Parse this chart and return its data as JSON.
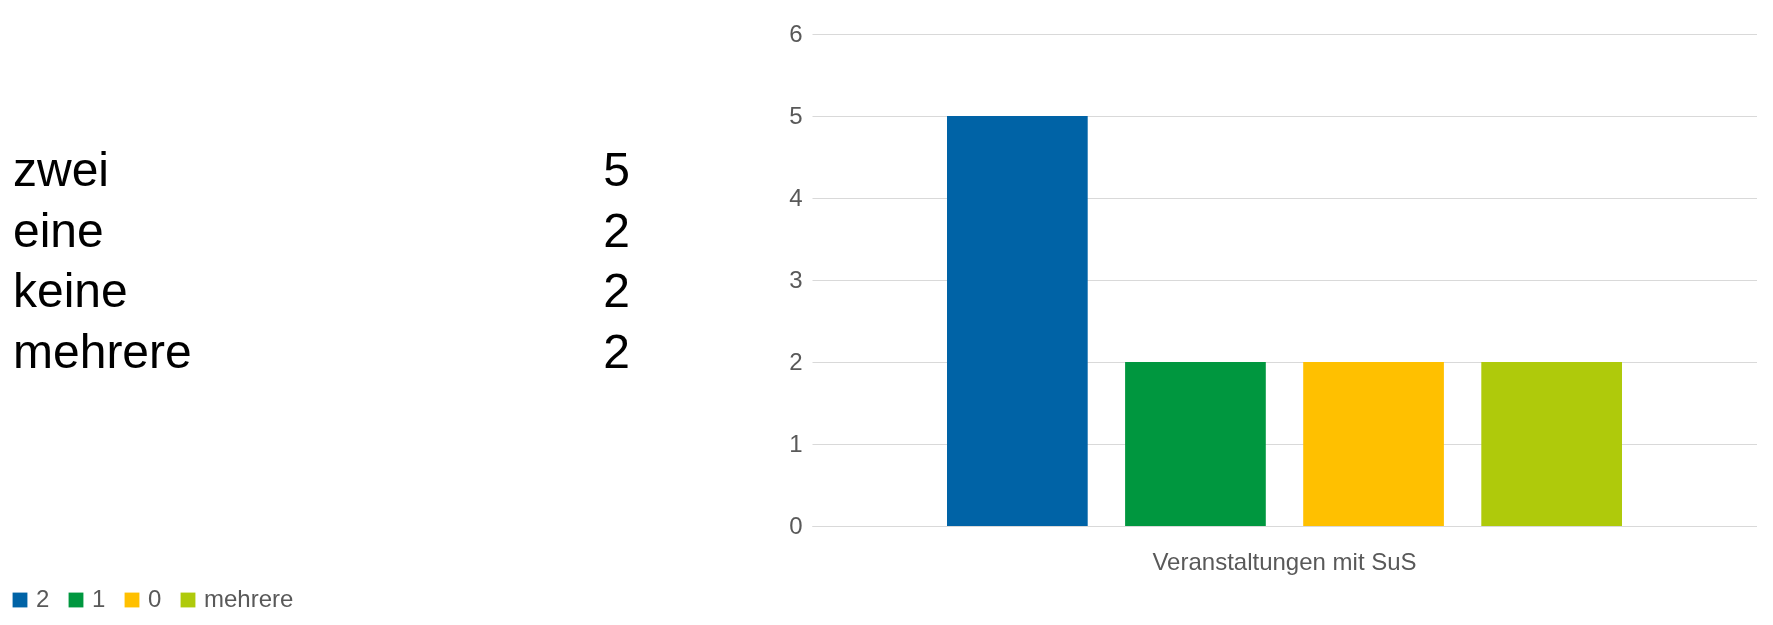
{
  "chart_data": [
    {
      "type": "other",
      "categories": [
        "zwei",
        "eine",
        "keine",
        "mehrere"
      ],
      "values": [
        5,
        2,
        2,
        2
      ],
      "data_labels": true
    },
    {
      "type": "bar",
      "categories": [
        "Veranstaltungen mit SuS"
      ],
      "series": [
        {
          "name": "2",
          "color": "#0063a6",
          "values": [
            5
          ]
        },
        {
          "name": "1",
          "color": "#00973f",
          "values": [
            2
          ]
        },
        {
          "name": "0",
          "color": "#ffc000",
          "values": [
            2
          ]
        },
        {
          "name": "mehrere",
          "color": "#afca0b",
          "values": [
            2
          ]
        }
      ],
      "ylim": [
        0,
        6
      ],
      "yticks": [
        0,
        1,
        2,
        3,
        4,
        5,
        6
      ],
      "grid": "y",
      "legend": "bottom"
    }
  ]
}
